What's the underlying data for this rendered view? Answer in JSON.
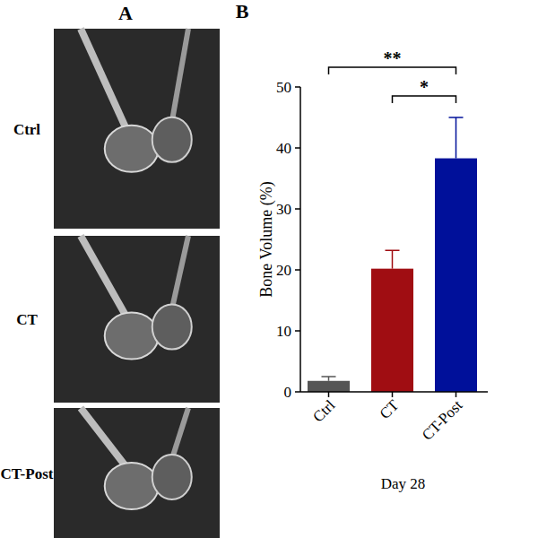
{
  "chart_data": {
    "type": "bar",
    "categories": [
      "Ctrl",
      "CT",
      "CT-Post"
    ],
    "values": [
      1.8,
      20.2,
      38.3
    ],
    "errors": [
      0.7,
      3.0,
      6.7
    ],
    "colors": [
      "#555555",
      "#a00d12",
      "#00109a"
    ],
    "y_label": "Bone Volume (%)",
    "x_label": "Day 28",
    "ylim": [
      0,
      50
    ],
    "yticks": [
      0,
      10,
      20,
      30,
      40,
      50
    ],
    "annotations": [
      {
        "between": [
          "Ctrl",
          "CT-Post"
        ],
        "text": "**"
      },
      {
        "between": [
          "CT",
          "CT-Post"
        ],
        "text": "*"
      }
    ]
  },
  "figure": {
    "panel_labels": [
      "A",
      "B"
    ],
    "images": [
      {
        "label": "Ctrl"
      },
      {
        "label": "CT"
      },
      {
        "label": "CT-Post"
      }
    ]
  }
}
